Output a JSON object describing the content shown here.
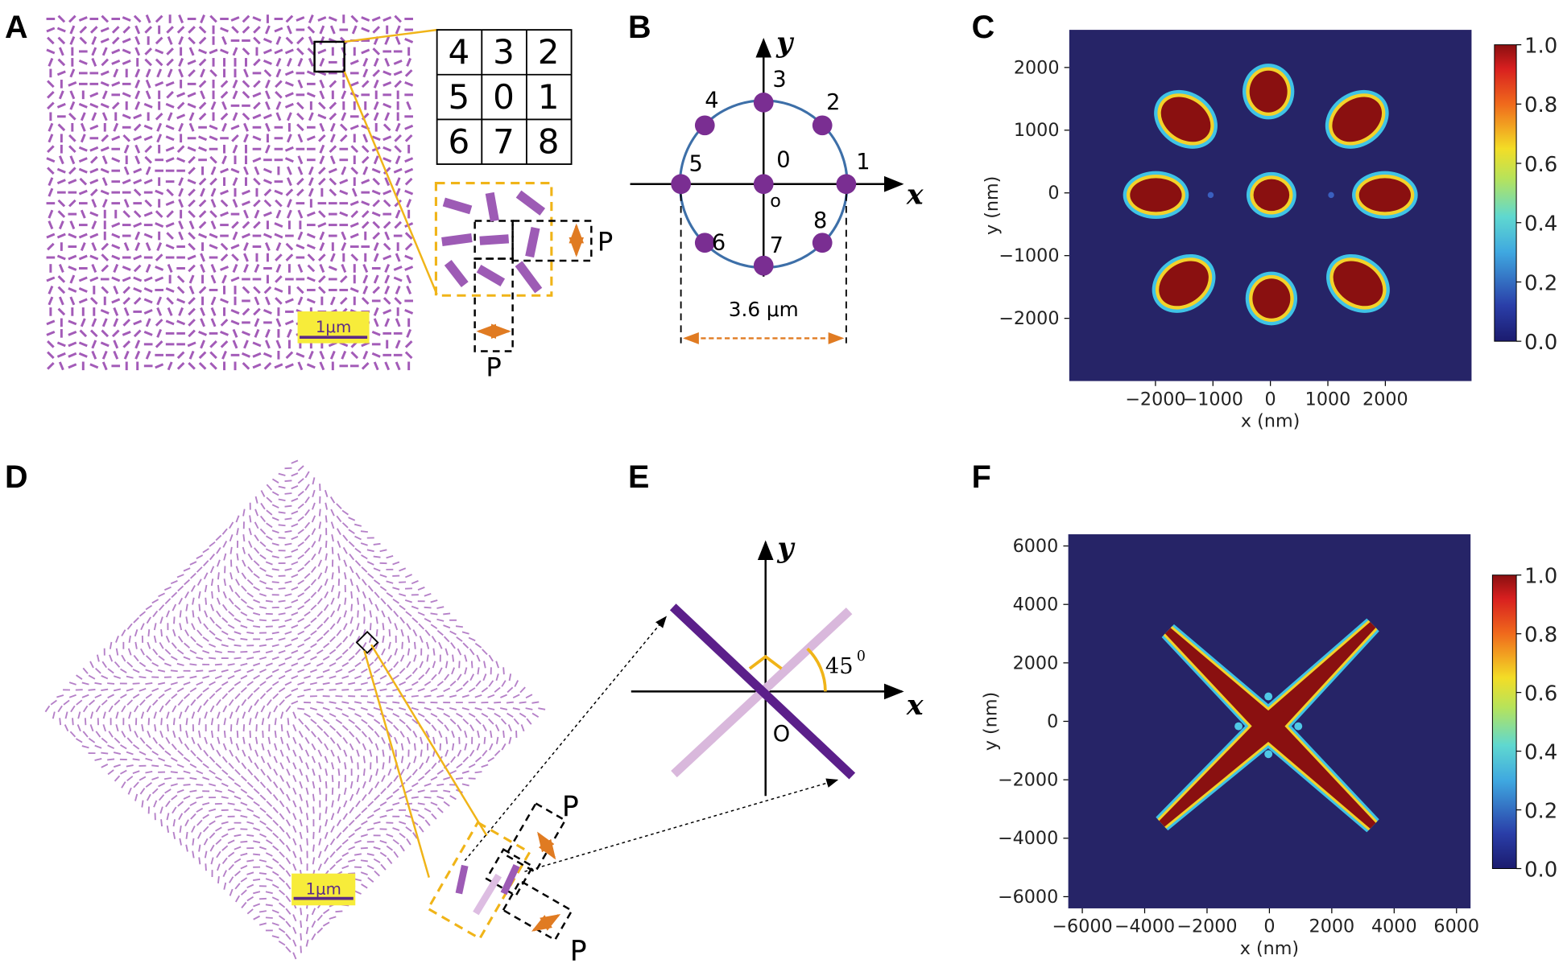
{
  "panels": {
    "A": {
      "label": "A",
      "cells": [
        "4",
        "3",
        "2",
        "5",
        "0",
        "1",
        "6",
        "7",
        "8"
      ],
      "period_labels": [
        "P",
        "P"
      ],
      "scale_bar": "1μm"
    },
    "B": {
      "label": "B",
      "axis_x": "x",
      "axis_y": "y",
      "points": [
        "0",
        "1",
        "2",
        "3",
        "4",
        "5",
        "6",
        "7",
        "8"
      ],
      "origin": "o",
      "diameter": "3.6 μm"
    },
    "D": {
      "label": "D",
      "period_labels": [
        "P",
        "P"
      ],
      "scale_bar": "1μm"
    },
    "E": {
      "label": "E",
      "axis_x": "x",
      "axis_y": "y",
      "angle": "45",
      "angle_sup": "0",
      "origin": "O"
    }
  },
  "chart_data": [
    {
      "type": "heatmap",
      "panel_label": "C",
      "x_label": "x (nm)",
      "y_label": "y (nm)",
      "background": "#262467",
      "xlim": [
        -3500,
        3500
      ],
      "ylim": [
        -3000,
        2600
      ],
      "xticks": [
        {
          "value": -2000,
          "label": "−2000"
        },
        {
          "value": -1000,
          "label": "−1000"
        },
        0,
        1000,
        2000
      ],
      "yticks": [
        {
          "value": -2000,
          "label": "−2000"
        },
        {
          "value": -1000,
          "label": "−1000"
        },
        0,
        1000,
        2000
      ],
      "colorbar": {
        "lim": [
          0,
          1
        ],
        "ticks": [
          {
            "value": 0,
            "label": "0.0"
          },
          0.2,
          0.4,
          0.6,
          0.8,
          {
            "value": 1,
            "label": "1.0"
          }
        ]
      }
    },
    {
      "type": "heatmap",
      "panel_label": "F",
      "x_label": "x (nm)",
      "y_label": "y (nm)",
      "background": "#262467",
      "xlim": [
        -6450,
        6450
      ],
      "ylim": [
        -6400,
        6400
      ],
      "xticks": [
        {
          "value": -6000,
          "label": "−6000"
        },
        {
          "value": -4000,
          "label": "−4000"
        },
        {
          "value": -2000,
          "label": "−2000"
        },
        0,
        2000,
        4000,
        6000
      ],
      "yticks": [
        {
          "value": -6000,
          "label": "−6000"
        },
        {
          "value": -4000,
          "label": "−4000"
        },
        {
          "value": -2000,
          "label": "−2000"
        },
        0,
        2000,
        4000,
        6000
      ],
      "colorbar": {
        "lim": [
          0,
          1
        ],
        "ticks": [
          {
            "value": 0,
            "label": "0.0"
          },
          0.2,
          0.4,
          0.6,
          0.8,
          {
            "value": 1,
            "label": "1.0"
          }
        ]
      }
    }
  ]
}
